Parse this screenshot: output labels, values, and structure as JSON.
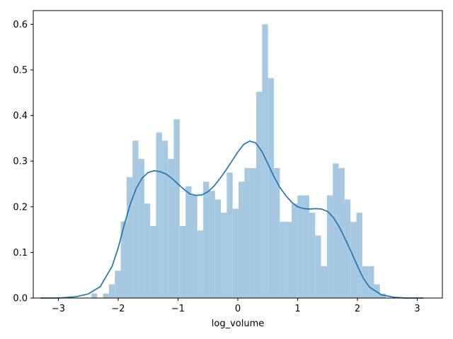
{
  "chart_data": {
    "type": "bar",
    "title": "",
    "xlabel": "log_volume",
    "ylabel": "",
    "xlim": [
      -3.42,
      3.42
    ],
    "ylim": [
      0.0,
      0.63
    ],
    "xticks": [
      -3,
      -2,
      -1,
      0,
      1,
      2,
      3
    ],
    "xtick_labels": [
      "−3",
      "−2",
      "−1",
      "0",
      "1",
      "2",
      "3"
    ],
    "yticks": [
      0.0,
      0.1,
      0.2,
      0.3,
      0.4,
      0.5,
      0.6
    ],
    "ytick_labels": [
      "0.0",
      "0.1",
      "0.2",
      "0.3",
      "0.4",
      "0.5",
      "0.6"
    ],
    "histogram": {
      "bin_start": -2.45,
      "bin_width": 0.0985,
      "heights": [
        0.01,
        0.0,
        0.01,
        0.03,
        0.06,
        0.168,
        0.265,
        0.345,
        0.305,
        0.207,
        0.158,
        0.363,
        0.345,
        0.305,
        0.392,
        0.158,
        0.245,
        0.225,
        0.148,
        0.255,
        0.235,
        0.216,
        0.187,
        0.275,
        0.196,
        0.255,
        0.285,
        0.285,
        0.452,
        0.6,
        0.482,
        0.285,
        0.167,
        0.167,
        0.207,
        0.225,
        0.225,
        0.187,
        0.137,
        0.07,
        0.225,
        0.295,
        0.285,
        0.216,
        0.167,
        0.187,
        0.07,
        0.07,
        0.03,
        0.01
      ],
      "color": "#a6c8e1"
    },
    "kde": {
      "x": [
        -3.3,
        -3.0,
        -2.7,
        -2.5,
        -2.3,
        -2.1,
        -2.0,
        -1.9,
        -1.8,
        -1.7,
        -1.6,
        -1.5,
        -1.4,
        -1.3,
        -1.2,
        -1.1,
        -1.0,
        -0.9,
        -0.8,
        -0.7,
        -0.6,
        -0.5,
        -0.4,
        -0.3,
        -0.2,
        -0.1,
        0.0,
        0.1,
        0.2,
        0.3,
        0.4,
        0.5,
        0.6,
        0.7,
        0.8,
        0.9,
        1.0,
        1.1,
        1.2,
        1.3,
        1.4,
        1.5,
        1.6,
        1.7,
        1.8,
        1.9,
        2.0,
        2.1,
        2.2,
        2.4,
        2.6,
        2.8,
        3.1
      ],
      "y": [
        0.0,
        0.0,
        0.003,
        0.009,
        0.025,
        0.07,
        0.11,
        0.16,
        0.205,
        0.24,
        0.263,
        0.275,
        0.279,
        0.277,
        0.272,
        0.262,
        0.25,
        0.238,
        0.228,
        0.225,
        0.226,
        0.233,
        0.245,
        0.262,
        0.28,
        0.3,
        0.32,
        0.337,
        0.344,
        0.34,
        0.322,
        0.295,
        0.267,
        0.243,
        0.225,
        0.21,
        0.2,
        0.196,
        0.195,
        0.196,
        0.195,
        0.19,
        0.176,
        0.155,
        0.128,
        0.1,
        0.07,
        0.043,
        0.024,
        0.007,
        0.002,
        0.0,
        0.0
      ],
      "color": "#1f77b4"
    }
  }
}
